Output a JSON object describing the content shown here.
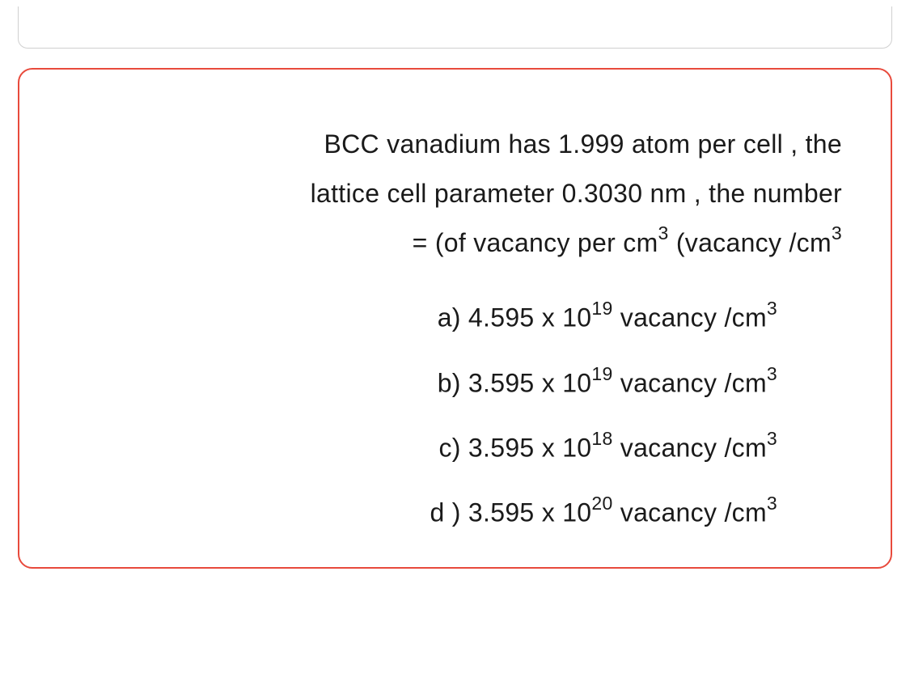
{
  "question": {
    "line1": "BCC vanadium has 1.999 atom per cell , the",
    "line2": "lattice cell  parameter 0.3030 nm , the number",
    "line3_prefix": "= (of vacancy per cm",
    "line3_sup1": "3",
    "line3_mid": "  (vacancy /cm",
    "line3_sup2": "3"
  },
  "options": {
    "a": {
      "label": "a) 4.595 x 10",
      "exp": "19",
      "unit": " vacancy /cm",
      "unit_exp": "3"
    },
    "b": {
      "label": "b)  3.595 x 10",
      "exp": "19",
      "unit": " vacancy /cm",
      "unit_exp": "3"
    },
    "c": {
      "label": "c) 3.595 x 10",
      "exp": "18",
      "unit": " vacancy /cm",
      "unit_exp": "3"
    },
    "d": {
      "label": "d ) 3.595 x 10",
      "exp": "20",
      "unit": "  vacancy /cm",
      "unit_exp": "3"
    }
  },
  "style": {
    "border_color": "#e84a3c",
    "text_color": "#1a1a1a",
    "background": "#ffffff",
    "font_size_main": 32,
    "font_size_sup": 23,
    "box_radius": 18
  }
}
